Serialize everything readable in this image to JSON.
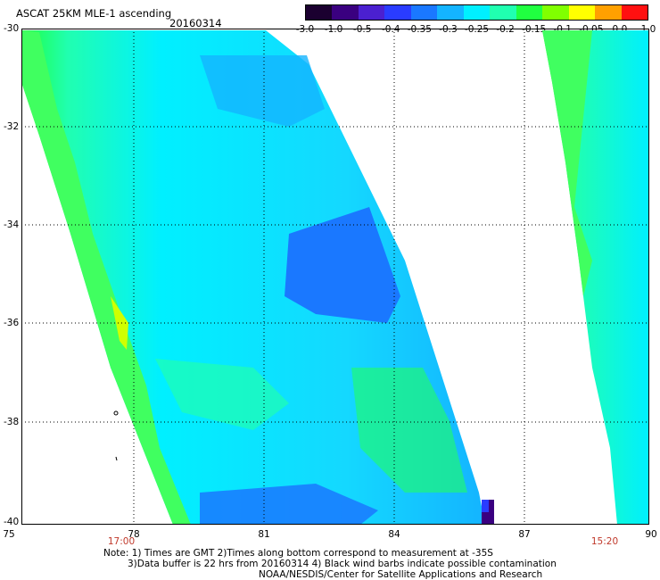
{
  "title": "ASCAT 25KM MLE-1 ascending",
  "date": "20160314",
  "colorbar": {
    "labels": [
      "-3.0",
      "-1.0",
      "-0.5",
      "-0.4",
      "-0.35",
      "-0.3",
      "-0.25",
      "-0.2",
      "-0.15",
      "-0.1",
      "-0.05",
      "0.0",
      "1.0"
    ],
    "colors": [
      "#1b0030",
      "#3a0080",
      "#4b20d0",
      "#2a3cff",
      "#1a78ff",
      "#14b4ff",
      "#00f0ff",
      "#20ffb0",
      "#20ff40",
      "#80ff00",
      "#ffff00",
      "#ffa000",
      "#ff1010"
    ]
  },
  "axes": {
    "lat_labels": [
      "-30",
      "-32",
      "-34",
      "-36",
      "-38",
      "-40"
    ],
    "lon_labels": [
      "75",
      "78",
      "81",
      "84",
      "87",
      "90"
    ],
    "lat_range": [
      -40,
      -30
    ],
    "lon_range": [
      75,
      90
    ],
    "grid": true
  },
  "swath_times": [
    "17:00",
    "15:20"
  ],
  "notes": [
    "Note: 1) Times are GMT 2)Times along bottom correspond to measurement at -35S",
    "3)Data buffer is 22 hrs from 20160314 4) Black wind barbs indicate possible contamination",
    "NOAA/NESDIS/Center for Satellite Applications and Research"
  ]
}
